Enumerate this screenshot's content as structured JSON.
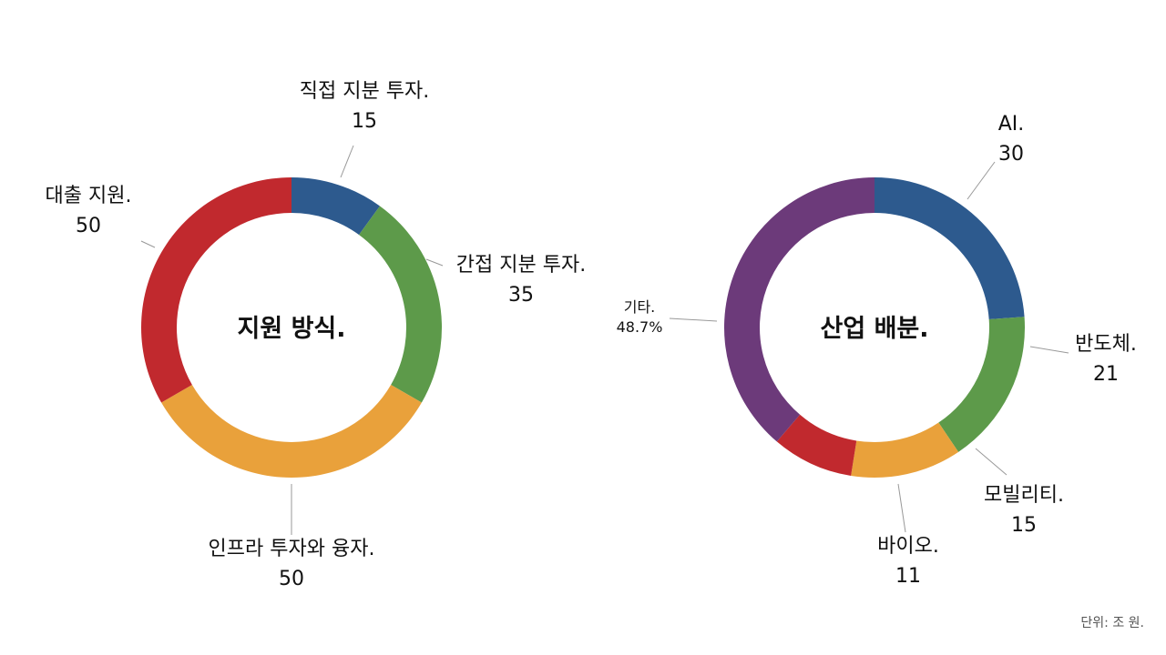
{
  "colors": {
    "blue": "#2d5a8e",
    "green": "#5d9a4a",
    "orange": "#e9a13b",
    "red": "#c1292e",
    "purple": "#6c3a7a"
  },
  "chart_data": [
    {
      "type": "pie",
      "donut": true,
      "title": "지원 방식.",
      "slices": [
        {
          "label": "직접 지분 투자.",
          "value": 15,
          "display": "15",
          "color": "#2d5a8e"
        },
        {
          "label": "간접 지분 투자.",
          "value": 35,
          "display": "35",
          "color": "#5d9a4a"
        },
        {
          "label": "인프라 투자와 융자.",
          "value": 50,
          "display": "50",
          "color": "#e9a13b"
        },
        {
          "label": "대출 지원.",
          "value": 50,
          "display": "50",
          "color": "#c1292e"
        }
      ]
    },
    {
      "type": "pie",
      "donut": true,
      "title": "산업 배분.",
      "slices": [
        {
          "label": "AI.",
          "value": 30,
          "display": "30",
          "color": "#2d5a8e"
        },
        {
          "label": "반도체.",
          "value": 21,
          "display": "21",
          "color": "#5d9a4a"
        },
        {
          "label": "모빌리티.",
          "value": 15,
          "display": "15",
          "color": "#e9a13b"
        },
        {
          "label": "바이오.",
          "value": 11,
          "display": "11",
          "color": "#c1292e"
        },
        {
          "label": "기타.",
          "value": 48.7,
          "display": "48.7%",
          "color": "#6c3a7a",
          "small": true
        }
      ]
    }
  ],
  "unit_note": "단위: 조 원."
}
